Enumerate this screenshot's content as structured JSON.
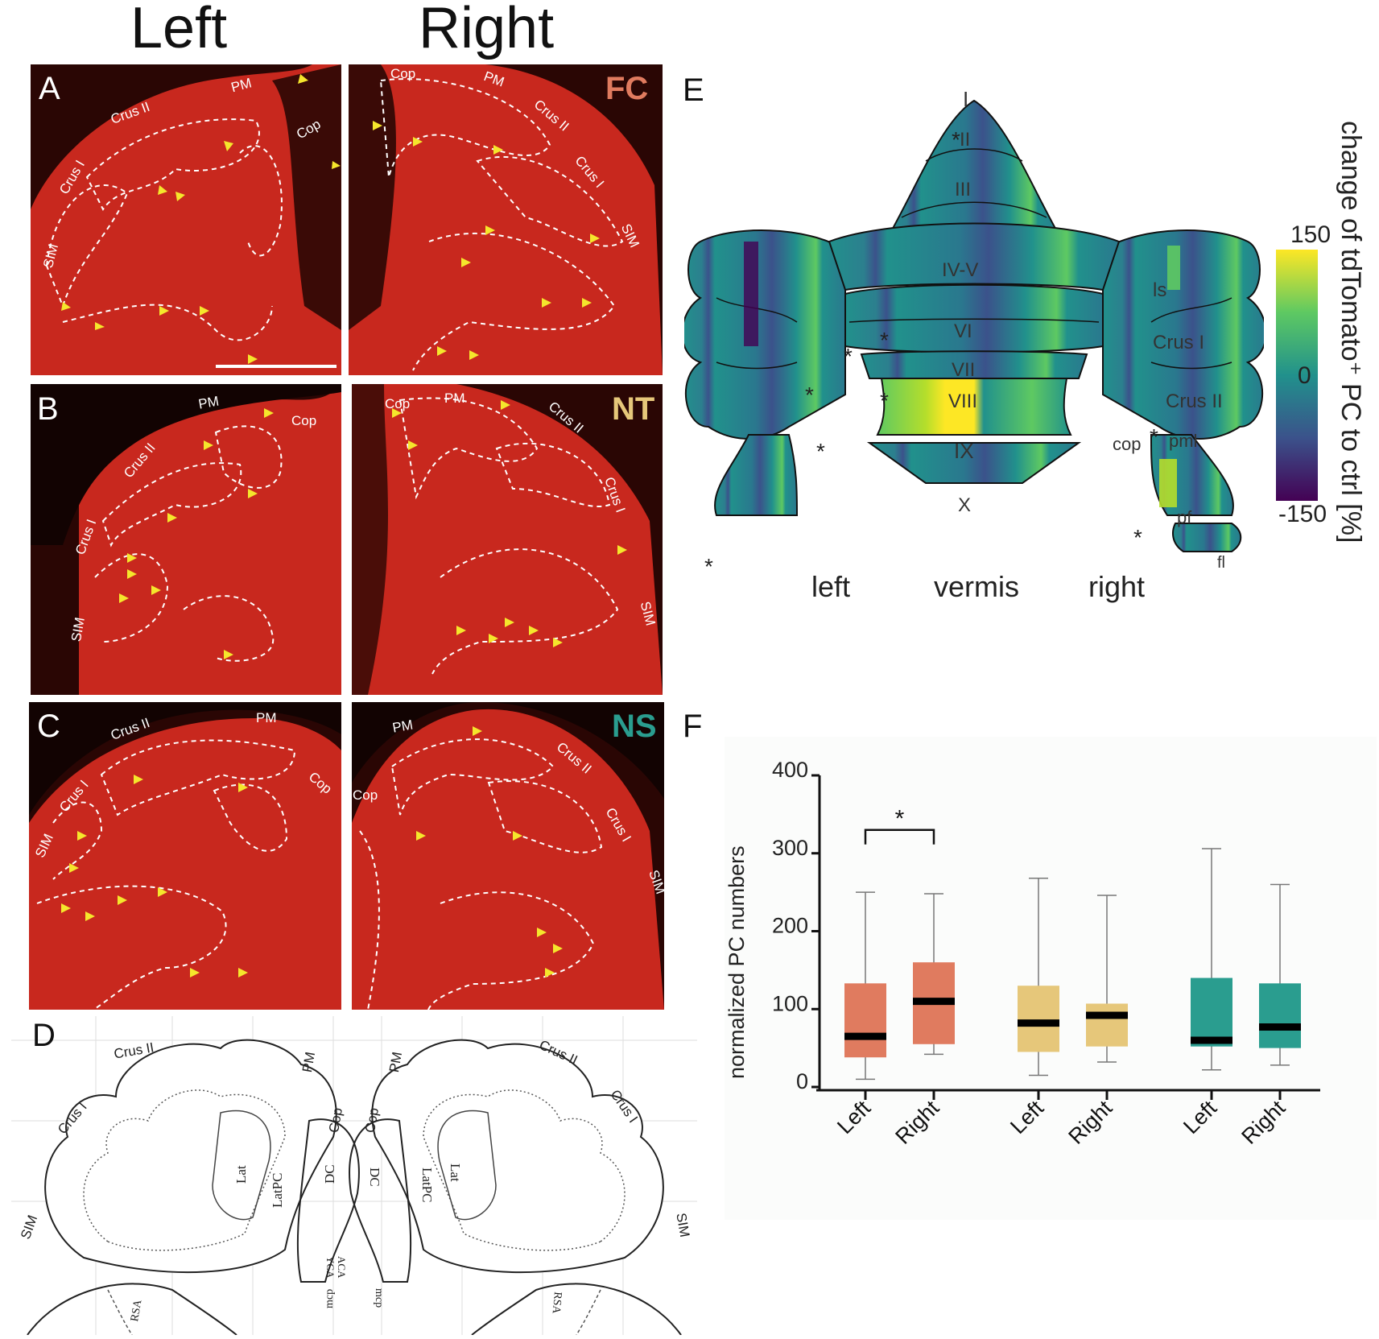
{
  "column_headers": {
    "left": "Left",
    "right": "Right"
  },
  "panels": {
    "A": {
      "letter": "A",
      "group": "FC",
      "group_color": "#e07b5f",
      "left_labels": [
        "PM",
        "Crus II",
        "Crus I",
        "Cop",
        "SIM"
      ],
      "right_labels": [
        "Cop",
        "PM",
        "Crus II",
        "Crus I",
        "SIM"
      ]
    },
    "B": {
      "letter": "B",
      "group": "NT",
      "group_color": "#e6c77a",
      "left_labels": [
        "PM",
        "Cop",
        "Crus II",
        "Crus I",
        "SIM"
      ],
      "right_labels": [
        "Cop",
        "PM",
        "Crus II",
        "Crus I",
        "SIM"
      ]
    },
    "C": {
      "letter": "C",
      "group": "NS",
      "group_color": "#2a9d8f",
      "left_labels": [
        "Crus II",
        "PM",
        "Crus I",
        "Cop",
        "SIM"
      ],
      "right_labels": [
        "PM",
        "Crus II",
        "Cop",
        "Crus I",
        "SIM"
      ]
    },
    "D": {
      "letter": "D",
      "left_labels": [
        "Crus II",
        "PM",
        "Crus I",
        "Cop",
        "SIM",
        "Lat",
        "LatPC",
        "DC",
        "YCA",
        "ACA",
        "mcp",
        "RSA"
      ],
      "right_labels": [
        "Crus II",
        "PM",
        "Crus I",
        "Cop",
        "SIM",
        "Lat",
        "LatPC",
        "DC",
        "mcp",
        "RSA"
      ]
    },
    "E": {
      "letter": "E",
      "lobules": [
        "I",
        "II",
        "III",
        "IV-V",
        "VI",
        "VII",
        "VIII",
        "IX",
        "X"
      ],
      "hemisphere_labels": [
        "ls",
        "Crus I",
        "Crus II",
        "cop",
        "pml",
        "pf",
        "fl"
      ],
      "axis_labels": {
        "left": "left",
        "center": "vermis",
        "right": "right"
      },
      "asterisk": "*",
      "colorbar": {
        "title": "change of tdTomato⁺ PC to ctrl [%]",
        "max": "150",
        "mid": "0",
        "min": "-150",
        "colors": [
          "#fde725",
          "#5ec962",
          "#21918c",
          "#3b528b",
          "#440154"
        ]
      }
    },
    "F": {
      "letter": "F"
    }
  },
  "chart_data": {
    "type": "box",
    "ylabel": "normalized PC numbers",
    "ylim": [
      0,
      400
    ],
    "yticks": [
      "0",
      "100",
      "200",
      "300",
      "400"
    ],
    "categories": [
      "Left",
      "Right",
      "Left",
      "Right",
      "Left",
      "Right"
    ],
    "boxes": [
      {
        "group": "FC",
        "category": "Left",
        "color": "#e07b5f",
        "min": 10,
        "q1": 38,
        "median": 65,
        "q3": 133,
        "max": 250
      },
      {
        "group": "FC",
        "category": "Right",
        "color": "#e07b5f",
        "min": 42,
        "q1": 55,
        "median": 110,
        "q3": 160,
        "max": 248
      },
      {
        "group": "NT",
        "category": "Left",
        "color": "#e6c77a",
        "min": 15,
        "q1": 45,
        "median": 82,
        "q3": 130,
        "max": 268
      },
      {
        "group": "NT",
        "category": "Right",
        "color": "#e6c77a",
        "min": 32,
        "q1": 52,
        "median": 92,
        "q3": 107,
        "max": 246
      },
      {
        "group": "NS",
        "category": "Left",
        "color": "#2a9d8f",
        "min": 22,
        "q1": 52,
        "median": 60,
        "q3": 140,
        "max": 306
      },
      {
        "group": "NS",
        "category": "Right",
        "color": "#2a9d8f",
        "min": 28,
        "q1": 50,
        "median": 77,
        "q3": 133,
        "max": 260
      }
    ],
    "significance": {
      "between": [
        0,
        1
      ],
      "label": "*",
      "y": 330
    }
  }
}
